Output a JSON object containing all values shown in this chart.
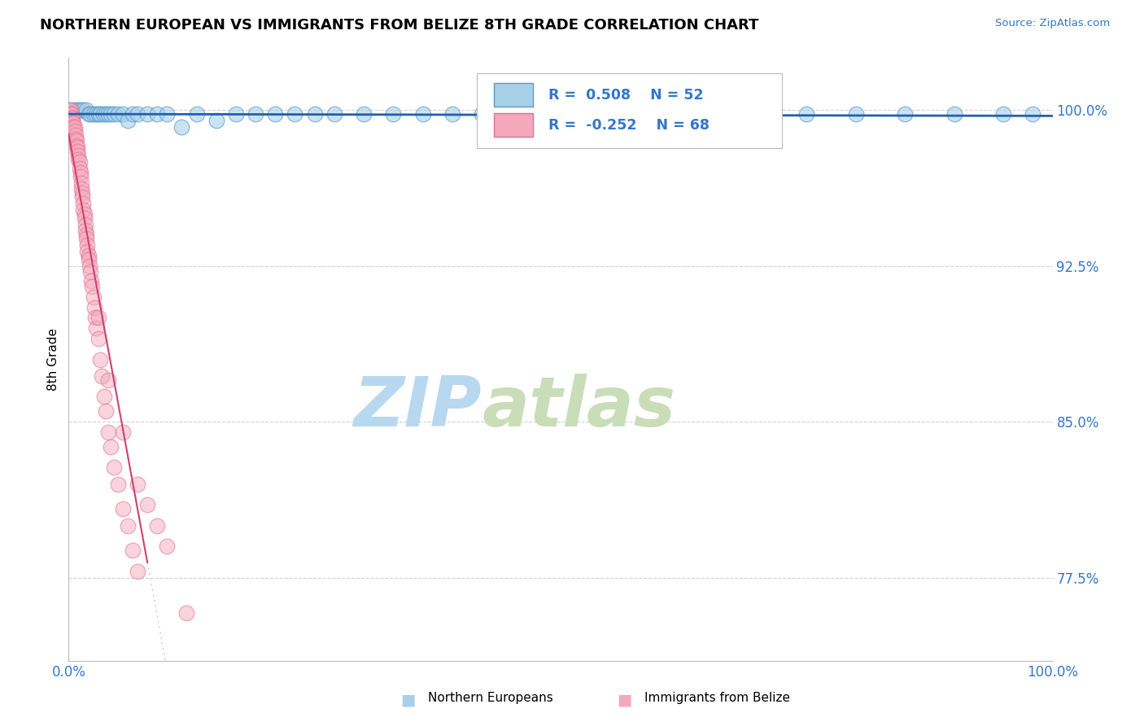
{
  "title": "NORTHERN EUROPEAN VS IMMIGRANTS FROM BELIZE 8TH GRADE CORRELATION CHART",
  "source_text": "Source: ZipAtlas.com",
  "ylabel": "8th Grade",
  "r_blue": 0.508,
  "n_blue": 52,
  "r_pink": -0.252,
  "n_pink": 68,
  "blue_color": "#a8cfe8",
  "pink_color": "#f4a8bc",
  "blue_edge_color": "#5b9bc8",
  "pink_edge_color": "#e07090",
  "blue_line_color": "#2060b0",
  "pink_line_color": "#d04070",
  "watermark_zip_color": "#c5dff0",
  "watermark_atlas_color": "#d8e8c8",
  "background_color": "#ffffff",
  "title_fontsize": 13,
  "axis_label_color": "#3377cc",
  "xlim": [
    0.0,
    1.0
  ],
  "ylim": [
    0.735,
    1.025
  ],
  "y_ticks": [
    0.775,
    0.85,
    0.925,
    1.0
  ],
  "y_tick_labels": [
    "77.5%",
    "85.0%",
    "92.5%",
    "100.0%"
  ],
  "blue_points_x": [
    0.005,
    0.008,
    0.01,
    0.012,
    0.015,
    0.018,
    0.02,
    0.022,
    0.025,
    0.028,
    0.03,
    0.032,
    0.035,
    0.038,
    0.04,
    0.043,
    0.046,
    0.05,
    0.055,
    0.06,
    0.065,
    0.07,
    0.08,
    0.09,
    0.1,
    0.115,
    0.13,
    0.15,
    0.17,
    0.19,
    0.21,
    0.23,
    0.25,
    0.27,
    0.3,
    0.33,
    0.36,
    0.39,
    0.42,
    0.45,
    0.48,
    0.52,
    0.56,
    0.6,
    0.65,
    0.7,
    0.75,
    0.8,
    0.85,
    0.9,
    0.95,
    0.98
  ],
  "blue_points_y": [
    1.0,
    1.0,
    1.0,
    1.0,
    1.0,
    1.0,
    0.998,
    0.998,
    0.998,
    0.998,
    0.998,
    0.998,
    0.998,
    0.998,
    0.998,
    0.998,
    0.998,
    0.998,
    0.998,
    0.995,
    0.998,
    0.998,
    0.998,
    0.998,
    0.998,
    0.992,
    0.998,
    0.995,
    0.998,
    0.998,
    0.998,
    0.998,
    0.998,
    0.998,
    0.998,
    0.998,
    0.998,
    0.998,
    0.998,
    0.998,
    0.998,
    0.998,
    0.998,
    0.99,
    0.998,
    0.998,
    0.998,
    0.998,
    0.998,
    0.998,
    0.998,
    0.998
  ],
  "pink_points_x": [
    0.001,
    0.002,
    0.002,
    0.003,
    0.003,
    0.004,
    0.004,
    0.005,
    0.005,
    0.006,
    0.006,
    0.007,
    0.007,
    0.008,
    0.008,
    0.009,
    0.009,
    0.01,
    0.01,
    0.011,
    0.011,
    0.012,
    0.012,
    0.013,
    0.013,
    0.014,
    0.014,
    0.015,
    0.015,
    0.016,
    0.016,
    0.017,
    0.017,
    0.018,
    0.018,
    0.019,
    0.019,
    0.02,
    0.02,
    0.021,
    0.022,
    0.023,
    0.024,
    0.025,
    0.026,
    0.027,
    0.028,
    0.03,
    0.032,
    0.034,
    0.036,
    0.038,
    0.04,
    0.043,
    0.046,
    0.05,
    0.055,
    0.06,
    0.065,
    0.07,
    0.03,
    0.04,
    0.055,
    0.07,
    0.08,
    0.09,
    0.1,
    0.12
  ],
  "pink_points_y": [
    1.0,
    1.0,
    0.998,
    0.998,
    0.996,
    0.996,
    0.994,
    0.994,
    0.992,
    0.992,
    0.99,
    0.988,
    0.986,
    0.985,
    0.983,
    0.982,
    0.98,
    0.978,
    0.976,
    0.975,
    0.972,
    0.97,
    0.968,
    0.965,
    0.962,
    0.96,
    0.958,
    0.955,
    0.952,
    0.95,
    0.948,
    0.945,
    0.942,
    0.94,
    0.938,
    0.935,
    0.932,
    0.93,
    0.928,
    0.925,
    0.922,
    0.918,
    0.915,
    0.91,
    0.905,
    0.9,
    0.895,
    0.89,
    0.88,
    0.872,
    0.862,
    0.855,
    0.845,
    0.838,
    0.828,
    0.82,
    0.808,
    0.8,
    0.788,
    0.778,
    0.9,
    0.87,
    0.845,
    0.82,
    0.81,
    0.8,
    0.79,
    0.758
  ]
}
